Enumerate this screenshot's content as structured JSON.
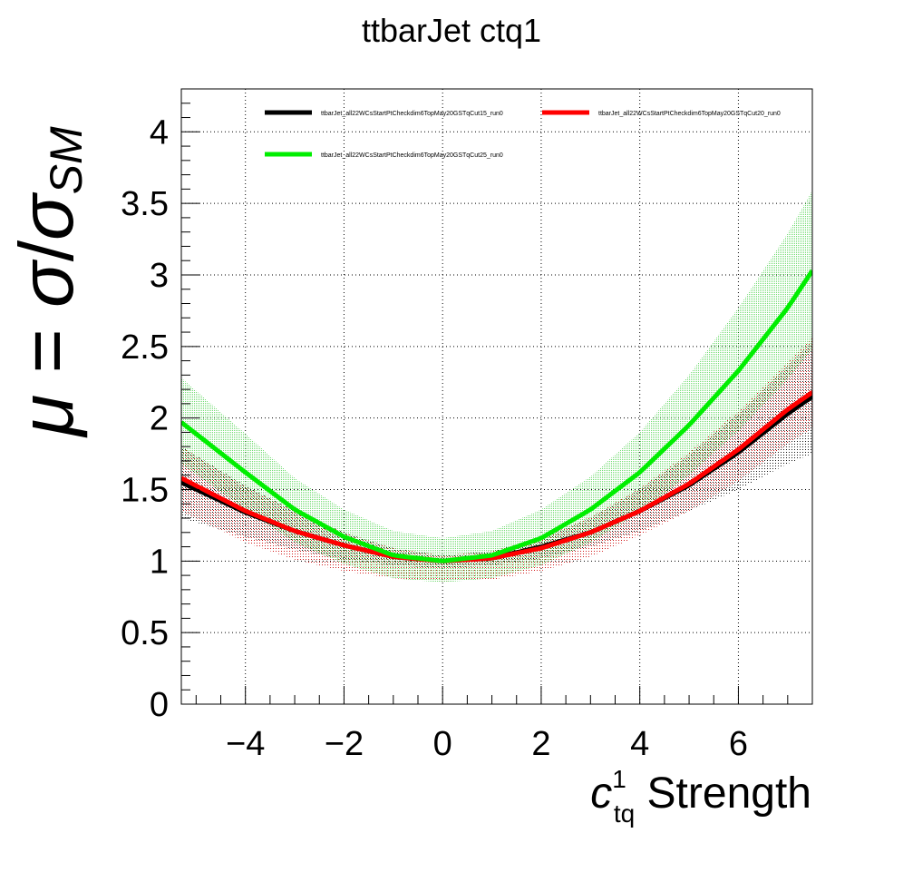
{
  "chart_data": {
    "type": "line",
    "title": "ttbarJet ctq1",
    "xlabel": {
      "base": "c",
      "sup": "1",
      "sub": "tq",
      "rest": " Strength"
    },
    "ylabel": {
      "mu": "μ",
      "eq": " = ",
      "sigma1": "σ",
      "slash": "/",
      "sigma2": "σ",
      "sub": "SM"
    },
    "xlim": [
      -5.3,
      7.5
    ],
    "ylim": [
      0,
      4.3
    ],
    "x_ticks": [
      -4,
      -2,
      0,
      2,
      4,
      6
    ],
    "x_tick_labels": [
      "−4",
      "−2",
      "0",
      "2",
      "4",
      "6"
    ],
    "y_ticks": [
      0,
      0.5,
      1,
      1.5,
      2,
      2.5,
      3,
      3.5,
      4
    ],
    "y_tick_labels": [
      "0",
      "0.5",
      "1",
      "1.5",
      "2",
      "2.5",
      "3",
      "3.5",
      "4"
    ],
    "grid": true,
    "legend_position": "top",
    "series": [
      {
        "name": "ttbarJet_all22WCsStartPtCheckdim6TopMay20GSTqCut15_run0",
        "color": "#000000",
        "x": [
          -5.3,
          -4,
          -3,
          -2,
          -1,
          0,
          1,
          2,
          3,
          4,
          5,
          6,
          7,
          7.5
        ],
        "y": [
          1.55,
          1.34,
          1.21,
          1.11,
          1.03,
          1.0,
          1.02,
          1.1,
          1.2,
          1.35,
          1.53,
          1.76,
          2.03,
          2.15
        ],
        "band_low": [
          1.3,
          1.17,
          1.08,
          1.01,
          0.97,
          0.95,
          0.97,
          1.02,
          1.1,
          1.21,
          1.35,
          1.5,
          1.68,
          1.75
        ],
        "band_high": [
          1.8,
          1.53,
          1.35,
          1.2,
          1.09,
          1.04,
          1.07,
          1.16,
          1.3,
          1.5,
          1.74,
          2.03,
          2.36,
          2.53
        ]
      },
      {
        "name": "ttbarJet_all22WCsStartPtCheckdim6TopMay20GSTqCut20_run0",
        "color": "#ff0000",
        "x": [
          -5.3,
          -4,
          -3,
          -2,
          -1,
          0,
          1,
          2,
          3,
          4,
          5,
          6,
          7,
          7.5
        ],
        "y": [
          1.58,
          1.35,
          1.21,
          1.11,
          1.03,
          1.0,
          1.02,
          1.09,
          1.2,
          1.35,
          1.54,
          1.78,
          2.06,
          2.18
        ],
        "band_low": [
          1.35,
          1.13,
          1.01,
          0.93,
          0.88,
          0.86,
          0.87,
          0.93,
          1.03,
          1.18,
          1.35,
          1.56,
          1.82,
          1.93
        ],
        "band_high": [
          1.8,
          1.52,
          1.35,
          1.2,
          1.09,
          1.04,
          1.07,
          1.16,
          1.31,
          1.51,
          1.76,
          2.05,
          2.39,
          2.56
        ]
      },
      {
        "name": "ttbarJet_all22WCsStartPtCheckdim6TopMay20GSTqCut25_run0",
        "color": "#00ee00",
        "x": [
          -5.3,
          -4,
          -3,
          -2,
          -1,
          0,
          1,
          2,
          3,
          4,
          5,
          6,
          7,
          7.5
        ],
        "y": [
          1.97,
          1.62,
          1.36,
          1.17,
          1.04,
          1.0,
          1.04,
          1.16,
          1.36,
          1.62,
          1.95,
          2.33,
          2.77,
          3.03
        ],
        "band_low": [
          1.68,
          1.36,
          1.13,
          0.98,
          0.88,
          0.85,
          0.88,
          0.97,
          1.13,
          1.34,
          1.6,
          1.91,
          2.27,
          2.48
        ],
        "band_high": [
          2.28,
          1.89,
          1.58,
          1.36,
          1.21,
          1.16,
          1.21,
          1.36,
          1.59,
          1.9,
          2.3,
          2.77,
          3.29,
          3.59
        ]
      }
    ]
  }
}
